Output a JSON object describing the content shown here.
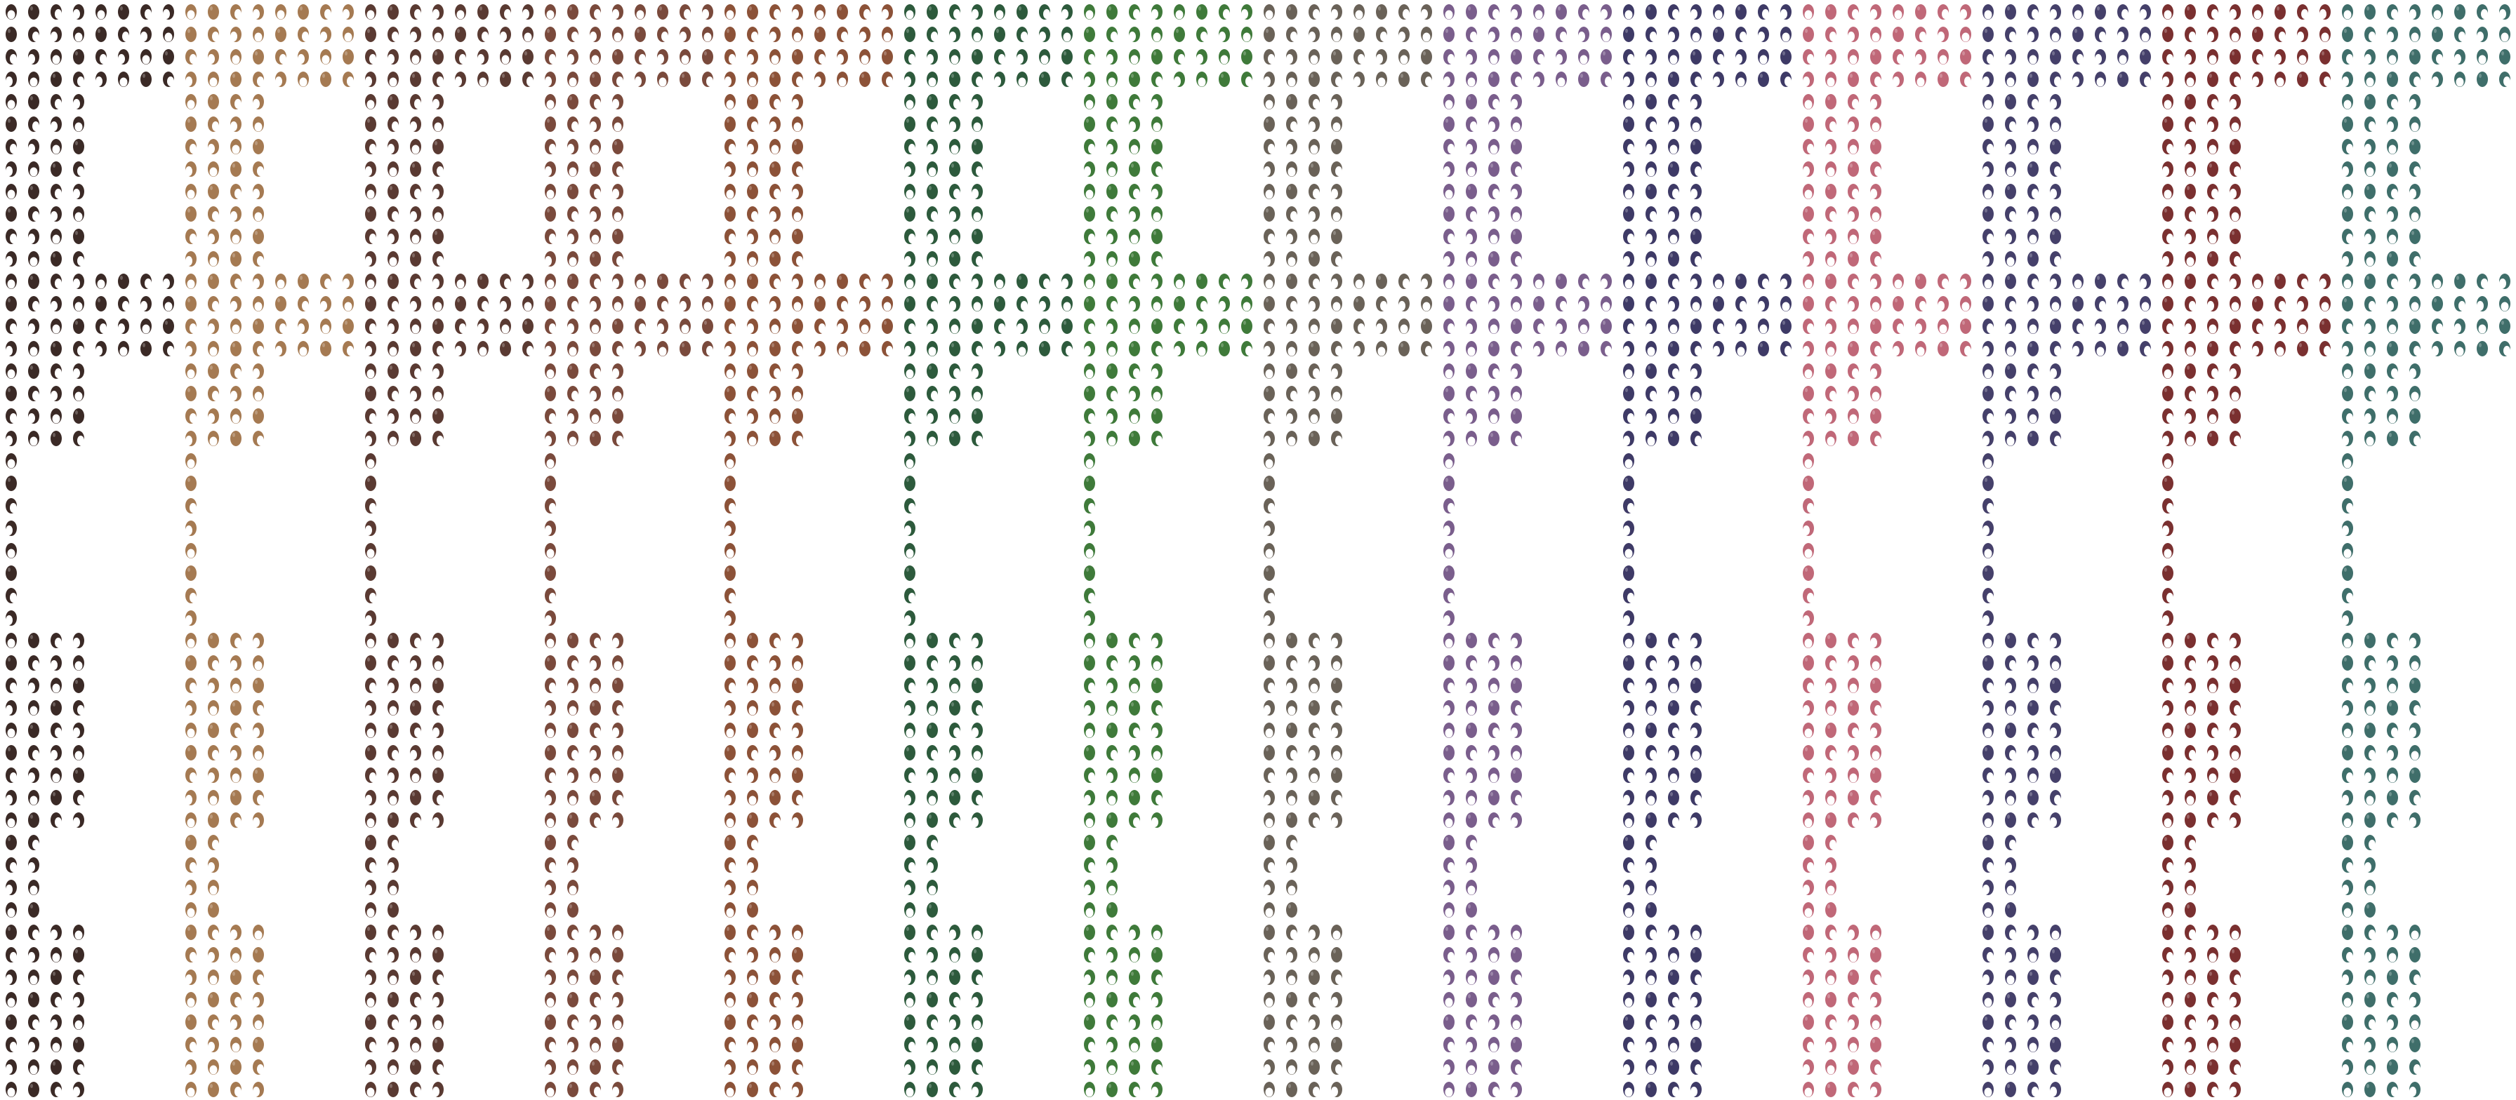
{
  "sprite_sheet": {
    "palette": [
      "#3b2a26",
      "#a57a52",
      "#5a3a32",
      "#7a4a3c",
      "#8c5238",
      "#2d5a3c",
      "#3f7a3a",
      "#6a6258",
      "#7a5e8c",
      "#3e3a66",
      "#c06878",
      "#45406a",
      "#7a3030",
      "#3f6e6a"
    ]
  }
}
